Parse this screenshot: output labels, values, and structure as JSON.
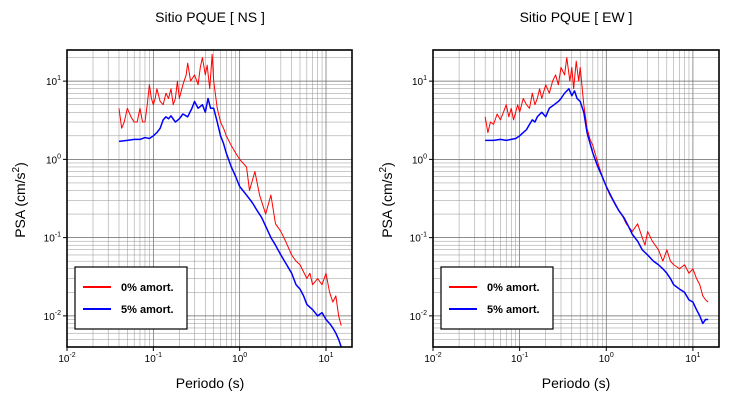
{
  "chart_data": [
    {
      "type": "line",
      "title": "Sitio PQUE [ NS ]",
      "xlabel": "Periodo (s)",
      "ylabel": "PSA (cm/s2)",
      "x_scale": "log",
      "y_scale": "log",
      "xlim": [
        0.01,
        20
      ],
      "ylim": [
        0.004,
        25
      ],
      "grid": true,
      "legend_position": "bottom-left",
      "x_ticks": [
        "10-2",
        "10-1",
        "100",
        "101"
      ],
      "y_ticks": [
        "10-2",
        "10-1",
        "100",
        "101"
      ],
      "series": [
        {
          "name": "0% amort.",
          "color": "#ff0000",
          "points": [
            [
              0.04,
              4.5
            ],
            [
              0.043,
              2.5
            ],
            [
              0.046,
              3.0
            ],
            [
              0.05,
              4.5
            ],
            [
              0.055,
              3.5
            ],
            [
              0.06,
              3.0
            ],
            [
              0.065,
              3.0
            ],
            [
              0.07,
              4.5
            ],
            [
              0.075,
              3.0
            ],
            [
              0.08,
              3.0
            ],
            [
              0.085,
              5.0
            ],
            [
              0.09,
              9.0
            ],
            [
              0.095,
              6.0
            ],
            [
              0.1,
              5.0
            ],
            [
              0.105,
              6.0
            ],
            [
              0.11,
              8.0
            ],
            [
              0.12,
              5.5
            ],
            [
              0.13,
              5.0
            ],
            [
              0.14,
              7.0
            ],
            [
              0.15,
              6.0
            ],
            [
              0.16,
              8.0
            ],
            [
              0.17,
              5.0
            ],
            [
              0.18,
              6.0
            ],
            [
              0.19,
              10.0
            ],
            [
              0.2,
              6.0
            ],
            [
              0.22,
              9.0
            ],
            [
              0.24,
              12.0
            ],
            [
              0.25,
              17.0
            ],
            [
              0.27,
              10.0
            ],
            [
              0.3,
              12.0
            ],
            [
              0.33,
              9.0
            ],
            [
              0.35,
              15.0
            ],
            [
              0.37,
              20.0
            ],
            [
              0.4,
              12.0
            ],
            [
              0.42,
              16.0
            ],
            [
              0.45,
              8.0
            ],
            [
              0.48,
              22.0
            ],
            [
              0.5,
              10.0
            ],
            [
              0.55,
              4.5
            ],
            [
              0.6,
              3.0
            ],
            [
              0.65,
              2.5
            ],
            [
              0.7,
              2.0
            ],
            [
              0.8,
              1.5
            ],
            [
              0.9,
              1.2
            ],
            [
              1.0,
              1.0
            ],
            [
              1.2,
              0.8
            ],
            [
              1.3,
              0.4
            ],
            [
              1.5,
              0.7
            ],
            [
              1.7,
              0.35
            ],
            [
              2.0,
              0.2
            ],
            [
              2.3,
              0.35
            ],
            [
              2.6,
              0.15
            ],
            [
              3.0,
              0.12
            ],
            [
              3.4,
              0.09
            ],
            [
              4.0,
              0.06
            ],
            [
              4.5,
              0.05
            ],
            [
              5.0,
              0.045
            ],
            [
              6.0,
              0.03
            ],
            [
              6.5,
              0.035
            ],
            [
              7.0,
              0.025
            ],
            [
              8.0,
              0.03
            ],
            [
              9.0,
              0.025
            ],
            [
              10.0,
              0.035
            ],
            [
              11.0,
              0.02
            ],
            [
              12.0,
              0.015
            ],
            [
              13.0,
              0.018
            ],
            [
              14.0,
              0.01
            ],
            [
              15.0,
              0.0075
            ]
          ]
        },
        {
          "name": "5% amort.",
          "color": "#0000ff",
          "points": [
            [
              0.04,
              1.7
            ],
            [
              0.05,
              1.75
            ],
            [
              0.06,
              1.8
            ],
            [
              0.07,
              1.8
            ],
            [
              0.08,
              1.9
            ],
            [
              0.09,
              1.85
            ],
            [
              0.1,
              2.0
            ],
            [
              0.11,
              2.2
            ],
            [
              0.12,
              2.5
            ],
            [
              0.13,
              3.2
            ],
            [
              0.14,
              3.5
            ],
            [
              0.15,
              3.3
            ],
            [
              0.16,
              3.6
            ],
            [
              0.18,
              3.0
            ],
            [
              0.2,
              3.3
            ],
            [
              0.22,
              3.8
            ],
            [
              0.25,
              3.5
            ],
            [
              0.28,
              4.5
            ],
            [
              0.3,
              5.5
            ],
            [
              0.33,
              4.5
            ],
            [
              0.37,
              5.0
            ],
            [
              0.4,
              4.0
            ],
            [
              0.43,
              6.0
            ],
            [
              0.46,
              4.5
            ],
            [
              0.5,
              4.5
            ],
            [
              0.55,
              3.0
            ],
            [
              0.6,
              2.0
            ],
            [
              0.65,
              1.6
            ],
            [
              0.7,
              1.2
            ],
            [
              0.8,
              0.8
            ],
            [
              0.9,
              0.6
            ],
            [
              1.0,
              0.45
            ],
            [
              1.2,
              0.35
            ],
            [
              1.4,
              0.28
            ],
            [
              1.6,
              0.22
            ],
            [
              1.8,
              0.18
            ],
            [
              2.0,
              0.14
            ],
            [
              2.3,
              0.1
            ],
            [
              2.6,
              0.08
            ],
            [
              3.0,
              0.06
            ],
            [
              3.5,
              0.045
            ],
            [
              4.0,
              0.035
            ],
            [
              4.5,
              0.025
            ],
            [
              5.0,
              0.022
            ],
            [
              5.5,
              0.018
            ],
            [
              6.0,
              0.014
            ],
            [
              7.0,
              0.012
            ],
            [
              8.0,
              0.01
            ],
            [
              9.0,
              0.011
            ],
            [
              10.0,
              0.009
            ],
            [
              11.0,
              0.008
            ],
            [
              12.0,
              0.007
            ],
            [
              13.0,
              0.006
            ],
            [
              14.0,
              0.005
            ],
            [
              15.0,
              0.004
            ]
          ]
        }
      ]
    },
    {
      "type": "line",
      "title": "Sitio PQUE [ EW ]",
      "xlabel": "Periodo (s)",
      "ylabel": "PSA (cm/s2)",
      "x_scale": "log",
      "y_scale": "log",
      "xlim": [
        0.01,
        20
      ],
      "ylim": [
        0.004,
        25
      ],
      "grid": true,
      "legend_position": "bottom-left",
      "x_ticks": [
        "10-2",
        "10-1",
        "100",
        "101"
      ],
      "y_ticks": [
        "10-2",
        "10-1",
        "100",
        "101"
      ],
      "series": [
        {
          "name": "0% amort.",
          "color": "#ff0000",
          "points": [
            [
              0.04,
              3.5
            ],
            [
              0.043,
              2.2
            ],
            [
              0.046,
              3.0
            ],
            [
              0.05,
              2.8
            ],
            [
              0.055,
              3.8
            ],
            [
              0.06,
              3.2
            ],
            [
              0.065,
              4.0
            ],
            [
              0.07,
              5.0
            ],
            [
              0.075,
              3.5
            ],
            [
              0.08,
              4.5
            ],
            [
              0.085,
              3.2
            ],
            [
              0.09,
              4.0
            ],
            [
              0.095,
              5.0
            ],
            [
              0.1,
              4.0
            ],
            [
              0.11,
              6.0
            ],
            [
              0.12,
              5.0
            ],
            [
              0.13,
              4.5
            ],
            [
              0.14,
              7.0
            ],
            [
              0.15,
              5.0
            ],
            [
              0.16,
              6.0
            ],
            [
              0.17,
              8.0
            ],
            [
              0.18,
              6.0
            ],
            [
              0.2,
              9.0
            ],
            [
              0.22,
              7.0
            ],
            [
              0.24,
              10.0
            ],
            [
              0.26,
              12.0
            ],
            [
              0.28,
              9.0
            ],
            [
              0.3,
              15.0
            ],
            [
              0.33,
              12.0
            ],
            [
              0.35,
              20.0
            ],
            [
              0.38,
              10.0
            ],
            [
              0.4,
              15.0
            ],
            [
              0.42,
              8.0
            ],
            [
              0.45,
              18.0
            ],
            [
              0.48,
              10.0
            ],
            [
              0.5,
              15.0
            ],
            [
              0.55,
              5.0
            ],
            [
              0.6,
              2.5
            ],
            [
              0.65,
              1.8
            ],
            [
              0.7,
              1.5
            ],
            [
              0.8,
              0.9
            ],
            [
              0.9,
              0.6
            ],
            [
              1.0,
              0.45
            ],
            [
              1.1,
              0.35
            ],
            [
              1.3,
              0.25
            ],
            [
              1.5,
              0.2
            ],
            [
              1.7,
              0.15
            ],
            [
              2.0,
              0.12
            ],
            [
              2.3,
              0.15
            ],
            [
              2.6,
              0.1
            ],
            [
              2.8,
              0.08
            ],
            [
              3.0,
              0.12
            ],
            [
              3.4,
              0.09
            ],
            [
              4.0,
              0.07
            ],
            [
              4.5,
              0.05
            ],
            [
              5.0,
              0.07
            ],
            [
              5.5,
              0.05
            ],
            [
              6.0,
              0.045
            ],
            [
              7.0,
              0.04
            ],
            [
              8.0,
              0.045
            ],
            [
              9.0,
              0.035
            ],
            [
              10.0,
              0.04
            ],
            [
              11.0,
              0.03
            ],
            [
              12.0,
              0.025
            ],
            [
              13.0,
              0.018
            ],
            [
              14.0,
              0.016
            ],
            [
              15.0,
              0.015
            ]
          ]
        },
        {
          "name": "5% amort.",
          "color": "#0000ff",
          "points": [
            [
              0.04,
              1.75
            ],
            [
              0.05,
              1.75
            ],
            [
              0.06,
              1.8
            ],
            [
              0.07,
              1.75
            ],
            [
              0.08,
              1.8
            ],
            [
              0.09,
              1.85
            ],
            [
              0.1,
              2.0
            ],
            [
              0.11,
              2.2
            ],
            [
              0.12,
              2.4
            ],
            [
              0.13,
              2.8
            ],
            [
              0.14,
              3.2
            ],
            [
              0.15,
              3.0
            ],
            [
              0.16,
              3.5
            ],
            [
              0.18,
              4.0
            ],
            [
              0.2,
              3.5
            ],
            [
              0.22,
              4.5
            ],
            [
              0.25,
              5.0
            ],
            [
              0.28,
              5.5
            ],
            [
              0.3,
              6.0
            ],
            [
              0.33,
              7.0
            ],
            [
              0.37,
              8.0
            ],
            [
              0.4,
              6.5
            ],
            [
              0.43,
              7.5
            ],
            [
              0.46,
              6.0
            ],
            [
              0.5,
              5.5
            ],
            [
              0.55,
              4.0
            ],
            [
              0.6,
              2.2
            ],
            [
              0.65,
              1.6
            ],
            [
              0.7,
              1.2
            ],
            [
              0.8,
              0.8
            ],
            [
              0.9,
              0.6
            ],
            [
              1.0,
              0.45
            ],
            [
              1.2,
              0.3
            ],
            [
              1.4,
              0.22
            ],
            [
              1.6,
              0.18
            ],
            [
              1.8,
              0.14
            ],
            [
              2.0,
              0.11
            ],
            [
              2.3,
              0.09
            ],
            [
              2.6,
              0.07
            ],
            [
              3.0,
              0.06
            ],
            [
              3.5,
              0.05
            ],
            [
              4.0,
              0.045
            ],
            [
              4.5,
              0.04
            ],
            [
              5.0,
              0.035
            ],
            [
              5.5,
              0.03
            ],
            [
              6.0,
              0.025
            ],
            [
              7.0,
              0.022
            ],
            [
              8.0,
              0.02
            ],
            [
              9.0,
              0.016
            ],
            [
              10.0,
              0.015
            ],
            [
              11.0,
              0.012
            ],
            [
              12.0,
              0.01
            ],
            [
              13.0,
              0.008
            ],
            [
              14.0,
              0.009
            ],
            [
              15.0,
              0.009
            ]
          ]
        }
      ]
    }
  ]
}
